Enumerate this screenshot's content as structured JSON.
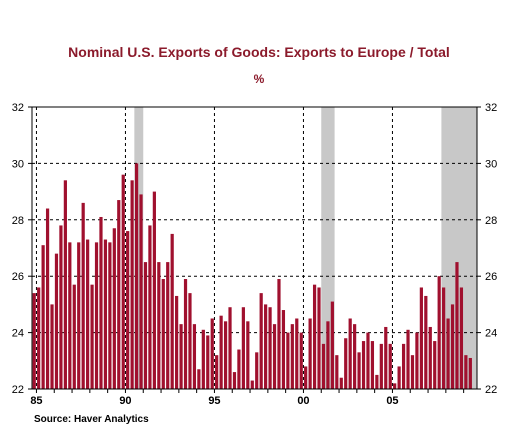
{
  "chart_data": {
    "type": "bar",
    "title": "Nominal U.S. Exports of Goods: Exports to Europe / Total",
    "subtitle": "%",
    "source": "Source: Haver Analytics",
    "ylim": [
      22,
      32
    ],
    "yticks": [
      22,
      24,
      26,
      28,
      30,
      32
    ],
    "xlim": [
      1984.75,
      2009.75
    ],
    "xticks": [
      {
        "value": 1985,
        "label": "85"
      },
      {
        "value": 1990,
        "label": "90"
      },
      {
        "value": 1995,
        "label": "95"
      },
      {
        "value": 2000,
        "label": "00"
      },
      {
        "value": 2005,
        "label": "05"
      }
    ],
    "grid": true,
    "bar_color": "#a0102e",
    "recession_color": "#c8c8c8",
    "recessions": [
      [
        1990.5,
        1991.0
      ],
      [
        2001.0,
        2001.75
      ],
      [
        2007.75,
        2009.75
      ]
    ],
    "x_start": 1984.75,
    "x_step": 0.25,
    "values": [
      25.4,
      25.6,
      27.1,
      28.4,
      25.0,
      26.8,
      27.8,
      29.4,
      27.2,
      25.7,
      27.2,
      28.6,
      27.3,
      25.7,
      27.2,
      28.1,
      27.3,
      27.2,
      27.7,
      28.7,
      29.6,
      27.6,
      29.4,
      30.0,
      28.9,
      26.5,
      27.8,
      29.0,
      26.5,
      25.9,
      26.5,
      27.5,
      25.3,
      24.3,
      25.9,
      25.4,
      24.3,
      22.7,
      24.1,
      23.9,
      24.5,
      23.2,
      24.6,
      24.4,
      24.9,
      22.6,
      23.4,
      24.9,
      24.4,
      22.3,
      23.3,
      25.4,
      25.0,
      24.9,
      24.3,
      25.9,
      24.8,
      24.0,
      24.3,
      24.5,
      24.0,
      22.8,
      24.5,
      25.7,
      25.6,
      23.6,
      24.4,
      25.1,
      23.2,
      22.4,
      23.8,
      24.5,
      24.3,
      23.3,
      23.7,
      24.0,
      23.7,
      22.5,
      23.6,
      24.2,
      23.6,
      22.2,
      22.8,
      23.6,
      24.1,
      23.2,
      24.0,
      25.6,
      25.3,
      24.2,
      23.7,
      26.0,
      25.6,
      24.5,
      25.0,
      26.5,
      25.6,
      23.2,
      23.1
    ]
  }
}
